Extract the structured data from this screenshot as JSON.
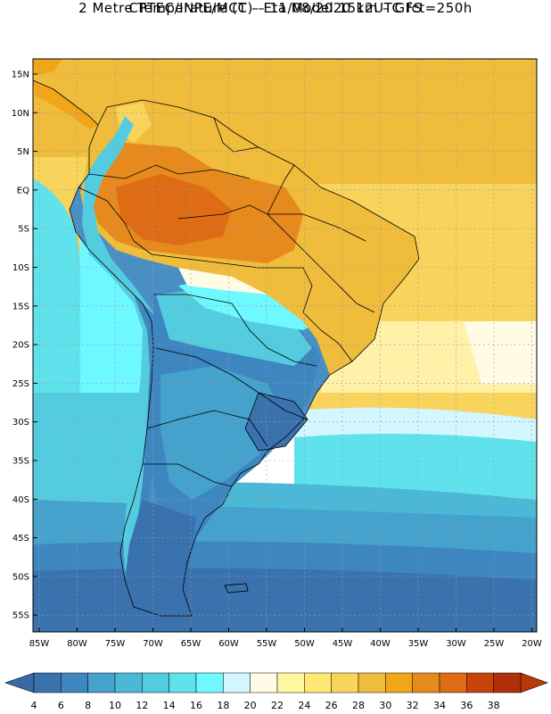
{
  "header": {
    "line1": "CPTEC/INPE/MCT –  Eta Model 15km – GFS",
    "line2": "2 Metre Temperature (C) – 11/08/2020 12UTC fct=250h"
  },
  "map": {
    "lat_labels": [
      "15N",
      "10N",
      "5N",
      "EQ",
      "5S",
      "10S",
      "15S",
      "20S",
      "25S",
      "30S",
      "35S",
      "40S",
      "45S",
      "50S",
      "55S"
    ],
    "lon_labels": [
      "85W",
      "80W",
      "75W",
      "70W",
      "65W",
      "60W",
      "55W",
      "50W",
      "45W",
      "40W",
      "35W",
      "30W",
      "25W",
      "20W"
    ]
  },
  "colorbar": {
    "levels": [
      "4",
      "6",
      "8",
      "10",
      "12",
      "14",
      "16",
      "18",
      "20",
      "22",
      "24",
      "26",
      "28",
      "30",
      "32",
      "34",
      "36",
      "38"
    ],
    "colors": [
      "#3a72ae",
      "#3e86bf",
      "#44a2cc",
      "#4ab8d6",
      "#54cce0",
      "#5fe2ec",
      "#6ef8ff",
      "#d4f6ff",
      "#fffbe4",
      "#fff8a0",
      "#ffe874",
      "#f8d45c",
      "#efbc3c",
      "#f0a618",
      "#e68a1e",
      "#de6c14",
      "#c8420c",
      "#b02e08"
    ],
    "low_color": "#3a6aa6",
    "high_color": "#b8380a"
  }
}
